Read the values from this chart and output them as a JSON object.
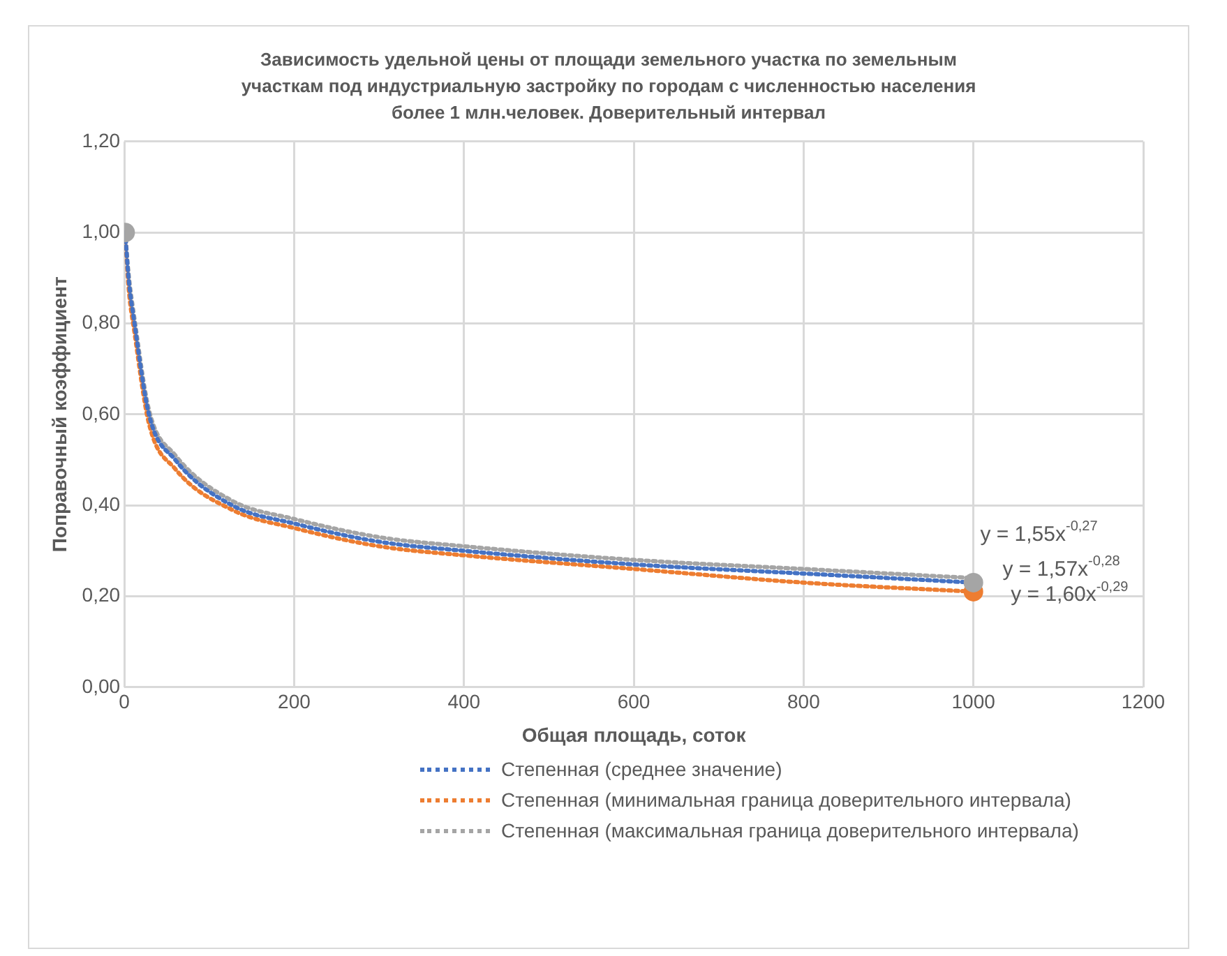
{
  "chart_data": {
    "type": "line",
    "title": "Зависимость удельной цены от площади земельного участка по земельным участкам под индустриальную застройку по городам с численностью населения более 1 млн.человек. Доверительный интервал",
    "xlabel": "Общая площадь, соток",
    "ylabel": "Поправочный коэффициент",
    "xlim": [
      0,
      1200
    ],
    "xticks": [
      0,
      200,
      400,
      600,
      800,
      1000,
      1200
    ],
    "ylim": [
      0,
      1.2
    ],
    "yticks": [
      {
        "value": 0,
        "label": "0,00"
      },
      {
        "value": 0.2,
        "label": "0,20"
      },
      {
        "value": 0.4,
        "label": "0,40"
      },
      {
        "value": 0.6,
        "label": "0,60"
      },
      {
        "value": 0.8,
        "label": "0,80"
      },
      {
        "value": 1,
        "label": "1,00"
      },
      {
        "value": 1.2,
        "label": "1,20"
      }
    ],
    "grid": true,
    "legend": "bottom",
    "marker": "none",
    "line_style": "dotted",
    "annotations": [
      "y = 1,55x$^{-0,27}$",
      "y = 1,57x$^{-0,28}$",
      "y = 1,60x$^{-0,29}$"
    ],
    "series": [
      {
        "name": "Степенная (среднее значение)",
        "color": "#4472c4",
        "x": [
          1,
          5,
          12,
          29,
          60,
          127,
          200,
          300,
          400,
          600,
          800,
          1000
        ],
        "values": [
          1.0,
          0.9,
          0.8,
          0.6,
          0.5,
          0.4,
          0.36,
          0.32,
          0.3,
          0.27,
          0.25,
          0.23
        ]
      },
      {
        "name": "Степенная (минимальная граница доверительного интервала)",
        "color": "#ed7d31",
        "x": [
          1,
          5,
          12,
          29,
          60,
          127,
          200,
          300,
          400,
          600,
          800,
          1000
        ],
        "values": [
          1.0,
          0.88,
          0.78,
          0.58,
          0.48,
          0.39,
          0.35,
          0.31,
          0.29,
          0.26,
          0.23,
          0.21
        ]
      },
      {
        "name": "Степенная (максимальная граница доверительного интервала)",
        "color": "#a5a5a5",
        "x": [
          1,
          5,
          12,
          29,
          60,
          127,
          200,
          300,
          400,
          600,
          800,
          1000
        ],
        "values": [
          1.0,
          0.91,
          0.81,
          0.61,
          0.51,
          0.41,
          0.37,
          0.33,
          0.31,
          0.28,
          0.26,
          0.24
        ]
      },
      {
        "type": "scatter",
        "marker": "circle",
        "color": "#a5a5a5",
        "x": [
          1,
          1000
        ],
        "values": [
          1.0,
          0.23
        ]
      },
      {
        "type": "scatter",
        "marker": "circle",
        "color": "#ed7d31",
        "x": [
          1000
        ],
        "values": [
          0.21
        ]
      }
    ]
  }
}
